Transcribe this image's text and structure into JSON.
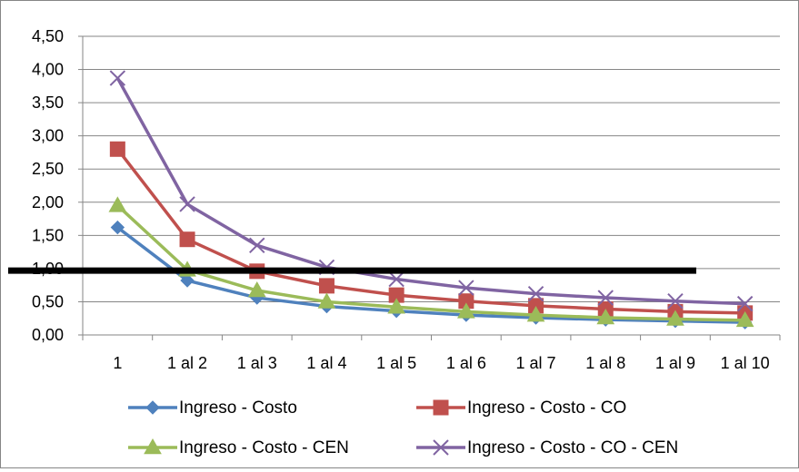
{
  "chart_data": {
    "type": "line",
    "categories": [
      "1",
      "1 al 2",
      "1 al 3",
      "1 al 4",
      "1 al 5",
      "1 al 6",
      "1 al 7",
      "1 al 8",
      "1 al 9",
      "1 al 10"
    ],
    "ylim": [
      0,
      4.5
    ],
    "yticks": [
      "0,00",
      "0,50",
      "1,00",
      "1,50",
      "2,00",
      "2,50",
      "3,00",
      "3,50",
      "4,00",
      "4,50"
    ],
    "grid": true,
    "legend_position": "bottom",
    "reference_line": {
      "y": 0.97,
      "from_category": 0,
      "to_category": 8.3,
      "color": "#000000"
    },
    "series": [
      {
        "name": "Ingreso - Costo",
        "color": "#4F81BD",
        "marker": "diamond",
        "values": [
          1.62,
          0.82,
          0.56,
          0.43,
          0.36,
          0.3,
          0.26,
          0.23,
          0.21,
          0.19
        ]
      },
      {
        "name": "Ingreso - Costo - CO",
        "color": "#C0504D",
        "marker": "square",
        "values": [
          2.8,
          1.44,
          0.96,
          0.74,
          0.6,
          0.51,
          0.44,
          0.39,
          0.35,
          0.33
        ]
      },
      {
        "name": "Ingreso - Costo - CEN",
        "color": "#9BBB59",
        "marker": "triangle",
        "values": [
          1.95,
          0.98,
          0.67,
          0.5,
          0.42,
          0.35,
          0.3,
          0.26,
          0.24,
          0.22
        ]
      },
      {
        "name": "Ingreso - Costo - CO - CEN",
        "color": "#8064A2",
        "marker": "x",
        "values": [
          3.87,
          1.97,
          1.35,
          1.02,
          0.84,
          0.71,
          0.62,
          0.56,
          0.51,
          0.47
        ]
      }
    ]
  }
}
